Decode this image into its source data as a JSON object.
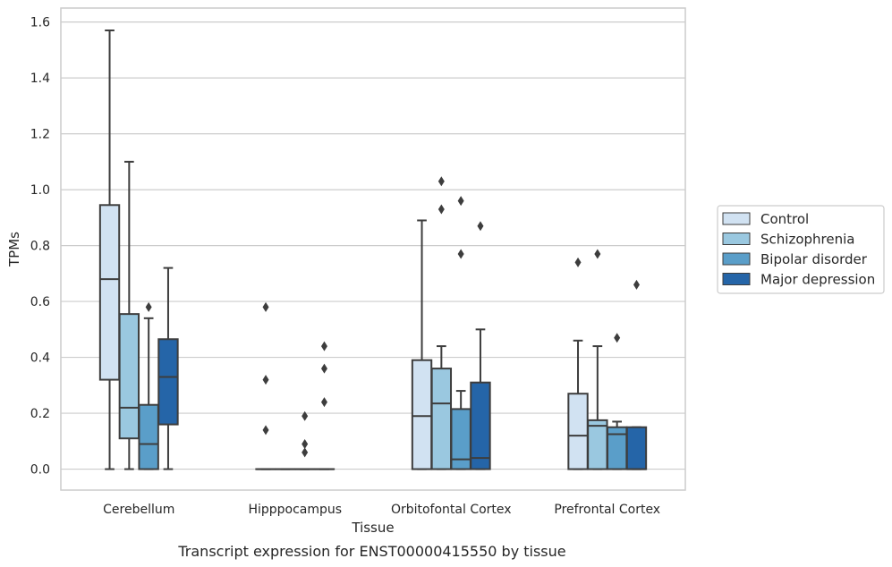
{
  "caption": "Transcript expression for ENST00000415550 by tissue",
  "chart_data": {
    "type": "box",
    "xlabel": "Tissue",
    "ylabel": "TPMs",
    "ylim": [
      -0.075,
      1.65
    ],
    "yticks": [
      0.0,
      0.2,
      0.4,
      0.6,
      0.8,
      1.0,
      1.2,
      1.4,
      1.6
    ],
    "ytick_labels": [
      "0.0",
      "0.2",
      "0.4",
      "0.6",
      "0.8",
      "1.0",
      "1.2",
      "1.4",
      "1.6"
    ],
    "grid": "horizontal",
    "legend_position": "right",
    "categories": [
      "Cerebellum",
      "Hipppocampus",
      "Orbitofontal Cortex",
      "Prefrontal Cortex"
    ],
    "series": [
      {
        "name": "Control",
        "color": "#d1e2f2",
        "boxes": [
          {
            "q1": 0.32,
            "median": 0.68,
            "q3": 0.945,
            "whisker_low": 0.0,
            "whisker_high": 1.57,
            "outliers": []
          },
          {
            "q1": 0.0,
            "median": 0.0,
            "q3": 0.0,
            "whisker_low": 0.0,
            "whisker_high": 0.0,
            "outliers": [
              0.58,
              0.32,
              0.14
            ]
          },
          {
            "q1": 0.0,
            "median": 0.19,
            "q3": 0.39,
            "whisker_low": 0.0,
            "whisker_high": 0.89,
            "outliers": []
          },
          {
            "q1": 0.0,
            "median": 0.12,
            "q3": 0.27,
            "whisker_low": 0.0,
            "whisker_high": 0.46,
            "outliers": [
              0.74
            ]
          }
        ]
      },
      {
        "name": "Schizophrenia",
        "color": "#9ac8e0",
        "boxes": [
          {
            "q1": 0.11,
            "median": 0.22,
            "q3": 0.555,
            "whisker_low": 0.0,
            "whisker_high": 1.1,
            "outliers": []
          },
          {
            "q1": 0.0,
            "median": 0.0,
            "q3": 0.0,
            "whisker_low": 0.0,
            "whisker_high": 0.0,
            "outliers": []
          },
          {
            "q1": 0.0,
            "median": 0.235,
            "q3": 0.36,
            "whisker_low": 0.0,
            "whisker_high": 0.44,
            "outliers": [
              1.03,
              0.93
            ]
          },
          {
            "q1": 0.0,
            "median": 0.155,
            "q3": 0.175,
            "whisker_low": 0.0,
            "whisker_high": 0.44,
            "outliers": [
              0.77
            ]
          }
        ]
      },
      {
        "name": "Bipolar disorder",
        "color": "#5a9ec9",
        "boxes": [
          {
            "q1": 0.0,
            "median": 0.09,
            "q3": 0.23,
            "whisker_low": 0.0,
            "whisker_high": 0.54,
            "outliers": [
              0.58
            ]
          },
          {
            "q1": 0.0,
            "median": 0.0,
            "q3": 0.0,
            "whisker_low": 0.0,
            "whisker_high": 0.0,
            "outliers": [
              0.19,
              0.09,
              0.06
            ]
          },
          {
            "q1": 0.0,
            "median": 0.035,
            "q3": 0.215,
            "whisker_low": 0.0,
            "whisker_high": 0.28,
            "outliers": [
              0.96,
              0.77
            ]
          },
          {
            "q1": 0.0,
            "median": 0.125,
            "q3": 0.15,
            "whisker_low": 0.0,
            "whisker_high": 0.17,
            "outliers": [
              0.47
            ]
          }
        ]
      },
      {
        "name": "Major depression",
        "color": "#2565a8",
        "boxes": [
          {
            "q1": 0.16,
            "median": 0.33,
            "q3": 0.465,
            "whisker_low": 0.0,
            "whisker_high": 0.72,
            "outliers": []
          },
          {
            "q1": 0.0,
            "median": 0.0,
            "q3": 0.0,
            "whisker_low": 0.0,
            "whisker_high": 0.0,
            "outliers": [
              0.44,
              0.36,
              0.24
            ]
          },
          {
            "q1": 0.0,
            "median": 0.04,
            "q3": 0.31,
            "whisker_low": 0.0,
            "whisker_high": 0.5,
            "outliers": [
              0.87
            ]
          },
          {
            "q1": 0.0,
            "median": 0.0,
            "q3": 0.15,
            "whisker_low": 0.0,
            "whisker_high": 0.15,
            "outliers": [
              0.66
            ]
          }
        ]
      }
    ]
  }
}
